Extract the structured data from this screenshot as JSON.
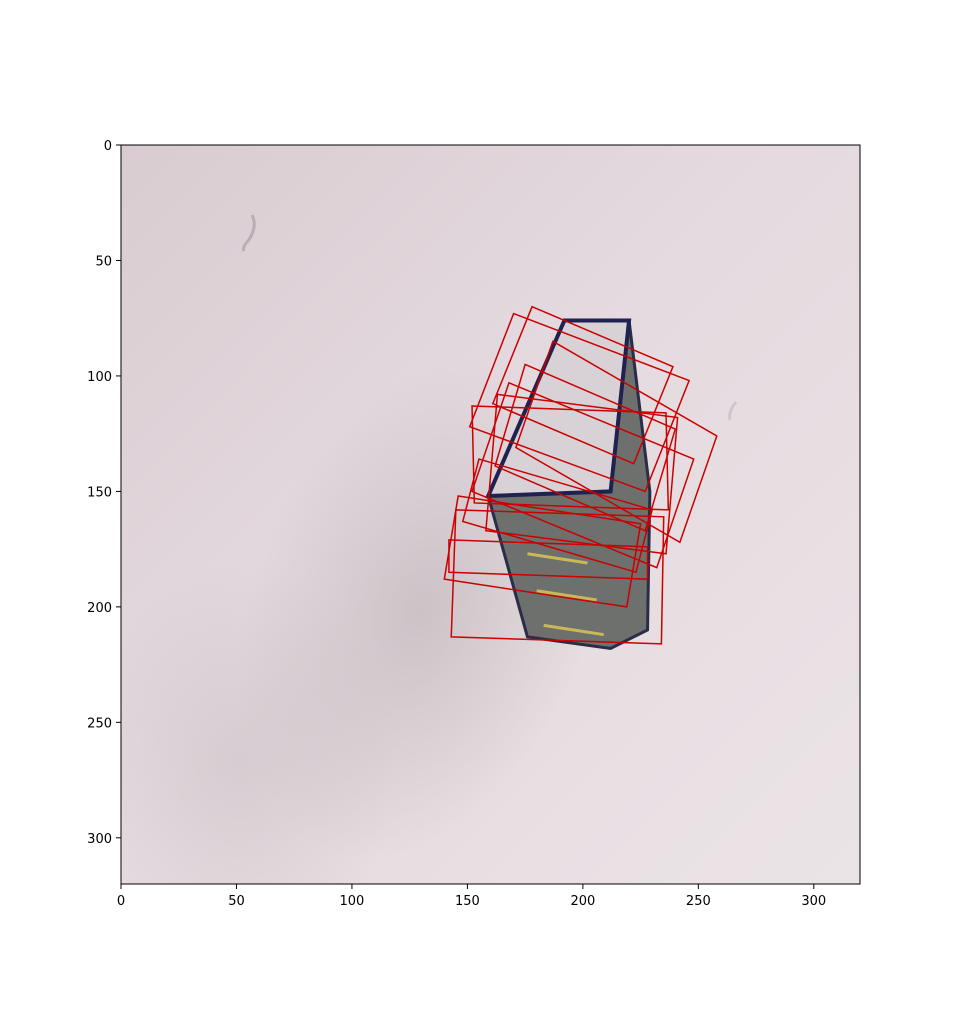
{
  "chart_data": {
    "type": "image",
    "x_ticks": [
      0,
      50,
      100,
      150,
      200,
      250,
      300
    ],
    "y_ticks": [
      0,
      50,
      100,
      150,
      200,
      250,
      300
    ],
    "xlim": [
      0,
      320
    ],
    "ylim": [
      320,
      0
    ],
    "grid": false,
    "overlay_color": "#cc0000",
    "grasp_rectangles": [
      [
        [
          170,
          73
        ],
        [
          246,
          102
        ],
        [
          227,
          150
        ],
        [
          151,
          122
        ]
      ],
      [
        [
          178,
          70
        ],
        [
          239,
          96
        ],
        [
          222,
          138
        ],
        [
          161,
          112
        ]
      ],
      [
        [
          187,
          85
        ],
        [
          258,
          126
        ],
        [
          242,
          172
        ],
        [
          171,
          131
        ]
      ],
      [
        [
          152,
          113
        ],
        [
          236,
          116
        ],
        [
          237,
          158
        ],
        [
          153,
          155
        ]
      ],
      [
        [
          168,
          103
        ],
        [
          248,
          136
        ],
        [
          232,
          183
        ],
        [
          152,
          150
        ]
      ],
      [
        [
          146,
          152
        ],
        [
          225,
          164
        ],
        [
          219,
          200
        ],
        [
          140,
          188
        ]
      ],
      [
        [
          142,
          171
        ],
        [
          228,
          174
        ],
        [
          228,
          188
        ],
        [
          142,
          185
        ]
      ],
      [
        [
          145,
          158
        ],
        [
          235,
          161
        ],
        [
          234,
          216
        ],
        [
          143,
          213
        ]
      ],
      [
        [
          155,
          136
        ],
        [
          230,
          158
        ],
        [
          223,
          185
        ],
        [
          148,
          163
        ]
      ],
      [
        [
          163,
          108
        ],
        [
          241,
          118
        ],
        [
          236,
          177
        ],
        [
          158,
          167
        ]
      ],
      [
        [
          175,
          95
        ],
        [
          240,
          123
        ],
        [
          227,
          167
        ],
        [
          162,
          139
        ]
      ]
    ],
    "object_outline": [
      [
        159,
        152
      ],
      [
        192,
        76
      ],
      [
        220,
        76
      ],
      [
        229,
        150
      ],
      [
        228,
        210
      ],
      [
        212,
        218
      ],
      [
        176,
        213
      ]
    ]
  }
}
